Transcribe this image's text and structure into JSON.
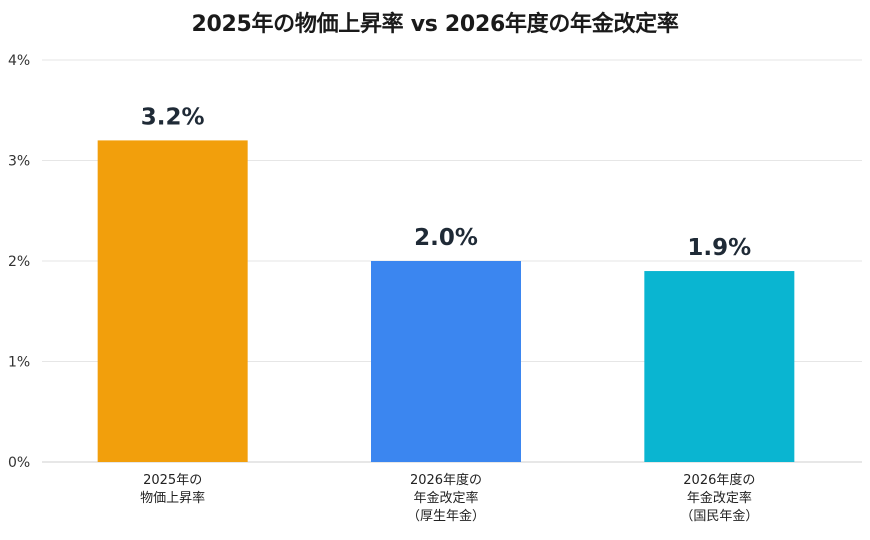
{
  "chart_data": {
    "type": "bar",
    "title": "2025年の物価上昇率 vs 2026年度の年金改定率",
    "categories": [
      [
        "2025年の",
        "物価上昇率"
      ],
      [
        "2026年度の",
        "年金改定率",
        "（厚生年金）"
      ],
      [
        "2026年度の",
        "年金改定率",
        "（国民年金）"
      ]
    ],
    "values": [
      3.2,
      2.0,
      1.9
    ],
    "data_labels": [
      "3.2%",
      "2.0%",
      "1.9%"
    ],
    "colors": [
      "#F29F0C",
      "#3B86F0",
      "#0AB5D1"
    ],
    "y_ticks": [
      0,
      1,
      2,
      3,
      4
    ],
    "y_tick_labels": [
      "0%",
      "1%",
      "2%",
      "3%",
      "4%"
    ],
    "ylim": [
      0,
      4
    ],
    "grid": true,
    "xlabel": "",
    "ylabel": ""
  }
}
